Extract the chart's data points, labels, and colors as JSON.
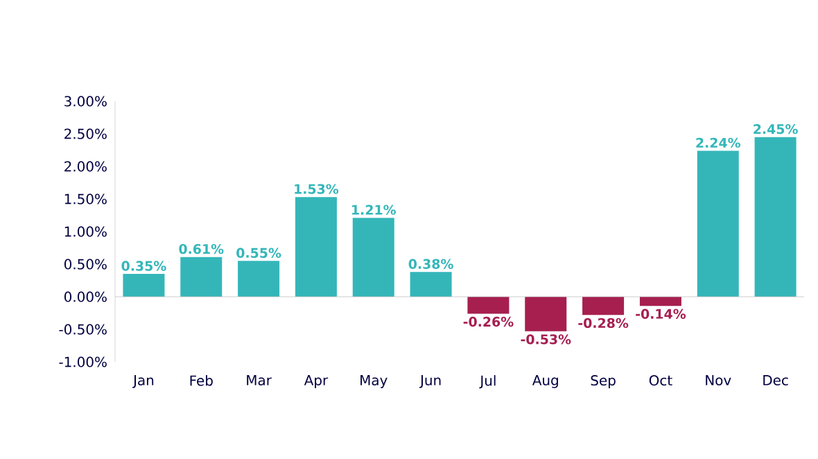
{
  "chart_data": {
    "type": "bar",
    "categories": [
      "Jan",
      "Feb",
      "Mar",
      "Apr",
      "May",
      "Jun",
      "Jul",
      "Aug",
      "Sep",
      "Oct",
      "Nov",
      "Dec"
    ],
    "values": [
      0.35,
      0.61,
      0.55,
      1.53,
      1.21,
      0.38,
      -0.26,
      -0.53,
      -0.28,
      -0.14,
      2.24,
      2.45
    ],
    "colors": [
      "#34b6b9",
      "#34b6b9",
      "#34b6b9",
      "#34b6b9",
      "#34b6b9",
      "#34b6b9",
      "#a61f4f",
      "#a61f4f",
      "#a61f4f",
      "#a61f4f",
      "#34b6b9",
      "#34b6b9"
    ],
    "value_labels": [
      "0.35%",
      "0.61%",
      "0.55%",
      "1.53%",
      "1.21%",
      "0.38%",
      "-0.26%",
      "-0.53%",
      "-0.28%",
      "-0.14%",
      "2.24%",
      "2.45%"
    ],
    "ylim": [
      -1.0,
      3.0
    ],
    "yticks": [
      {
        "value": -1.0,
        "label": "-1.00%"
      },
      {
        "value": -0.5,
        "label": "-0.50%"
      },
      {
        "value": 0,
        "label": "0.00%"
      },
      {
        "value": 0.5,
        "label": "0.50%"
      },
      {
        "value": 1.0,
        "label": "1.00%"
      },
      {
        "value": 1.5,
        "label": "1.50%"
      },
      {
        "value": 2.0,
        "label": "2.00%"
      },
      {
        "value": 2.5,
        "label": "2.50%"
      },
      {
        "value": 3.0,
        "label": "3.00%"
      }
    ]
  }
}
